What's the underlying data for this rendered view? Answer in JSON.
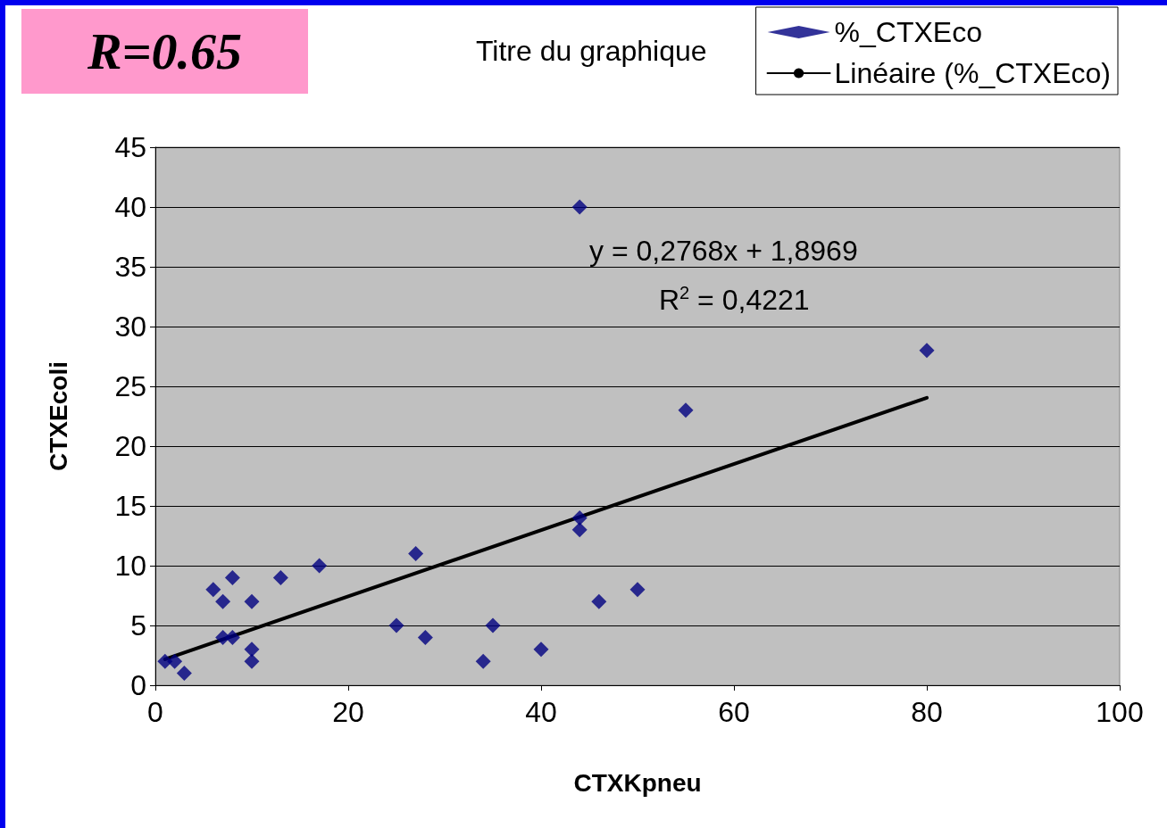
{
  "chart_data": {
    "type": "scatter",
    "title": "Titre du graphique",
    "xlabel": "CTXKpneu",
    "ylabel": "CTXEcoli",
    "annotations": [
      "R=0.65",
      "y = 0,2768x + 1,8969",
      "R$^{2}$ = 0,4221"
    ],
    "series": [
      {
        "name": "%_CTXEco",
        "type": "scatter",
        "color": "#000080",
        "marker": "diamond",
        "x": [
          1,
          2,
          3,
          6,
          7,
          7,
          8,
          8,
          10,
          10,
          10,
          13,
          17,
          25,
          27,
          28,
          34,
          35,
          40,
          44,
          44,
          44,
          46,
          50,
          55,
          80
        ],
        "values": [
          2,
          2,
          1,
          8,
          7,
          4,
          9,
          4,
          7,
          3,
          2,
          9,
          10,
          5,
          11,
          4,
          2,
          5,
          3,
          40,
          14,
          13,
          7,
          8,
          23,
          28
        ]
      },
      {
        "name": "Linéaire (%_CTXEco)",
        "type": "line",
        "color": "#000000",
        "marker": "none",
        "line_style": "solid",
        "x": [
          1,
          80
        ],
        "values": [
          2.17,
          24.04
        ]
      }
    ],
    "xlim": [
      0,
      100
    ],
    "xticks": [
      0,
      20,
      40,
      60,
      80,
      100
    ],
    "ylim": [
      0,
      45
    ],
    "yticks": [
      0,
      5,
      10,
      15,
      20,
      25,
      30,
      35,
      40,
      45
    ],
    "grid": "y",
    "legend": "top right"
  }
}
